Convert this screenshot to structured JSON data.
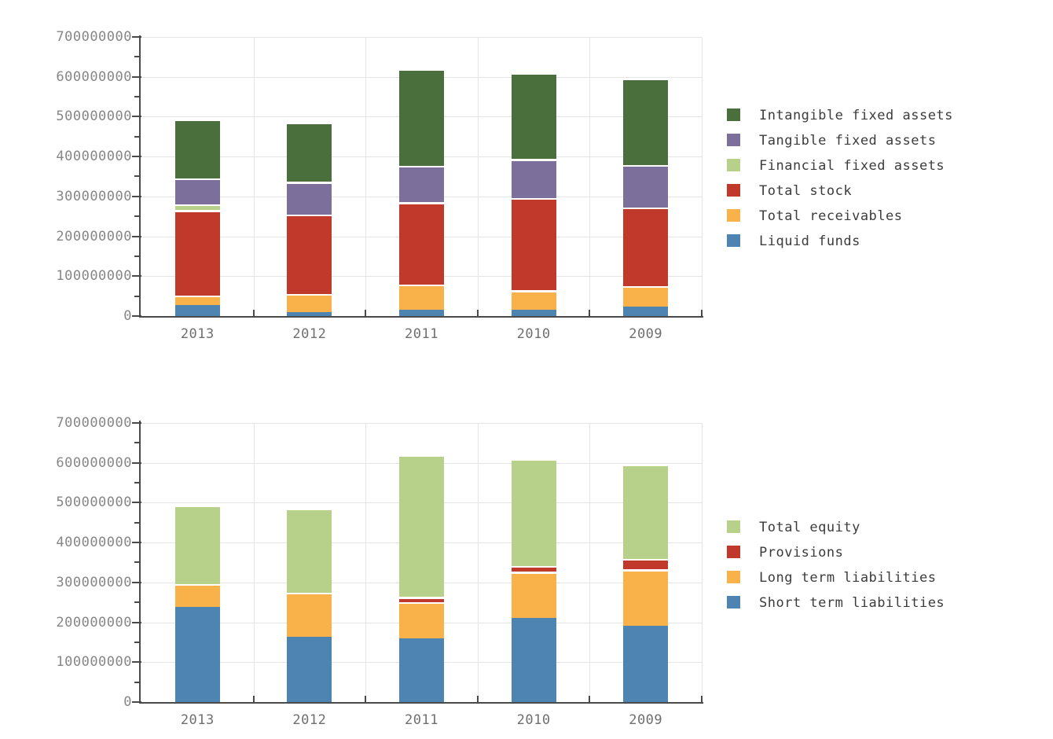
{
  "chart_data": [
    {
      "type": "bar",
      "stacked": true,
      "title": "",
      "xlabel": "",
      "ylabel": "",
      "grid": true,
      "legend_position": "right",
      "categories": [
        "2013",
        "2012",
        "2011",
        "2010",
        "2009"
      ],
      "ylim": [
        0,
        700000000
      ],
      "yticks": [
        {
          "value": 0,
          "label": "0"
        },
        {
          "value": 100000000,
          "label": "100000000"
        },
        {
          "value": 200000000,
          "label": "200000000"
        },
        {
          "value": 300000000,
          "label": "300000000"
        },
        {
          "value": 400000000,
          "label": "400000000"
        },
        {
          "value": 500000000,
          "label": "500000000"
        },
        {
          "value": 600000000,
          "label": "600000000"
        },
        {
          "value": 700000000,
          "label": "700000000"
        }
      ],
      "series": [
        {
          "name": "Liquid funds",
          "color": "#4d84b2",
          "values": [
            27000000,
            9000000,
            15000000,
            16000000,
            23000000
          ]
        },
        {
          "name": "Total receivables",
          "color": "#f9b149",
          "values": [
            24000000,
            46000000,
            63000000,
            48000000,
            52000000
          ]
        },
        {
          "name": "Total stock",
          "color": "#c0392b",
          "values": [
            214000000,
            199000000,
            206000000,
            231000000,
            196000000
          ]
        },
        {
          "name": "Financial fixed assets",
          "color": "#b8d18a",
          "values": [
            15000000,
            1000000,
            1000000,
            1000000,
            1000000
          ]
        },
        {
          "name": "Tangible fixed assets",
          "color": "#7d6f9b",
          "values": [
            64000000,
            81000000,
            91000000,
            97000000,
            107000000
          ]
        },
        {
          "name": "Intangible fixed assets",
          "color": "#4a6e3c",
          "values": [
            148000000,
            148000000,
            242000000,
            215000000,
            216000000
          ]
        }
      ]
    },
    {
      "type": "bar",
      "stacked": true,
      "title": "",
      "xlabel": "",
      "ylabel": "",
      "grid": true,
      "legend_position": "right",
      "categories": [
        "2013",
        "2012",
        "2011",
        "2010",
        "2009"
      ],
      "ylim": [
        0,
        700000000
      ],
      "yticks": [
        {
          "value": 0,
          "label": "0"
        },
        {
          "value": 100000000,
          "label": "100000000"
        },
        {
          "value": 200000000,
          "label": "200000000"
        },
        {
          "value": 300000000,
          "label": "300000000"
        },
        {
          "value": 400000000,
          "label": "400000000"
        },
        {
          "value": 500000000,
          "label": "500000000"
        },
        {
          "value": 600000000,
          "label": "600000000"
        },
        {
          "value": 700000000,
          "label": "700000000"
        }
      ],
      "series": [
        {
          "name": "Short term liabilities",
          "color": "#4d84b2",
          "values": [
            239000000,
            164000000,
            160000000,
            210000000,
            192000000
          ]
        },
        {
          "name": "Long term liabilities",
          "color": "#f9b149",
          "values": [
            56000000,
            110000000,
            90000000,
            116000000,
            140000000
          ]
        },
        {
          "name": "Provisions",
          "color": "#c0392b",
          "values": [
            0,
            0,
            13000000,
            14000000,
            27000000
          ]
        },
        {
          "name": "Total equity",
          "color": "#b8d18a",
          "values": [
            197000000,
            210000000,
            355000000,
            268000000,
            236000000
          ]
        }
      ]
    }
  ]
}
